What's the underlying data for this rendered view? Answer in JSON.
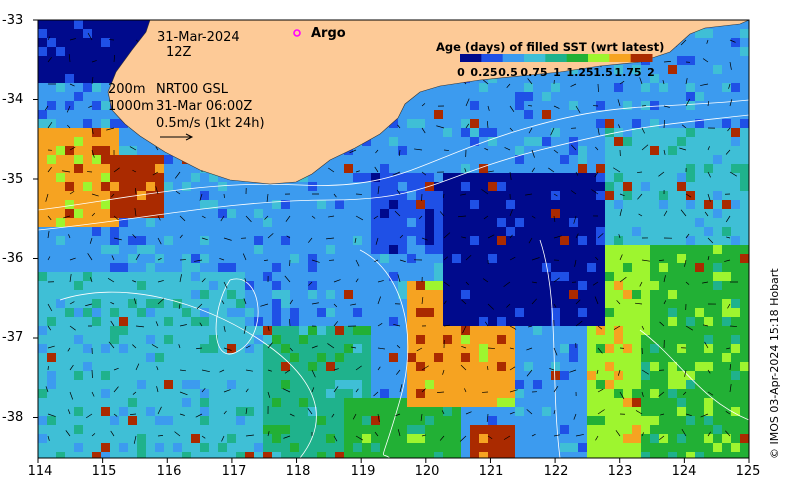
{
  "map": {
    "date_label": "31-Mar-2024",
    "hour_label": "12Z",
    "contour_200": "200m",
    "contour_1000": "1000m",
    "product": "NRT00 GSL",
    "product_time": "31-Mar 06:00Z",
    "vector_scale": "0.5m/s (1kt 24h)",
    "argo_label": "Argo",
    "credit": "© IMOS 03-Apr-2024 15:18 Hobart",
    "land_color": "#fdca97",
    "argo_marker_color": "#ff00ff"
  },
  "axes": {
    "y_ticks": [
      "-33",
      "-34",
      "-35",
      "-36",
      "-37",
      "-38"
    ],
    "x_ticks": [
      "114",
      "115",
      "116",
      "117",
      "118",
      "119",
      "120",
      "121",
      "122",
      "123",
      "124",
      "125"
    ],
    "lon_range": [
      114,
      125
    ],
    "lat_range": [
      -38.5,
      -33
    ]
  },
  "colorbar": {
    "title": "Age (days) of filled SST (wrt latest)",
    "ticks": [
      "0",
      "0.25",
      "0.5",
      "0.75",
      "1",
      "1.25",
      "1.5",
      "1.75",
      "2"
    ],
    "colors": [
      "#000a8c",
      "#1f50e6",
      "#3c9bef",
      "#3fbfd6",
      "#1fb28c",
      "#22b035",
      "#9ef52f",
      "#f6a321",
      "#aa2a00"
    ]
  }
}
